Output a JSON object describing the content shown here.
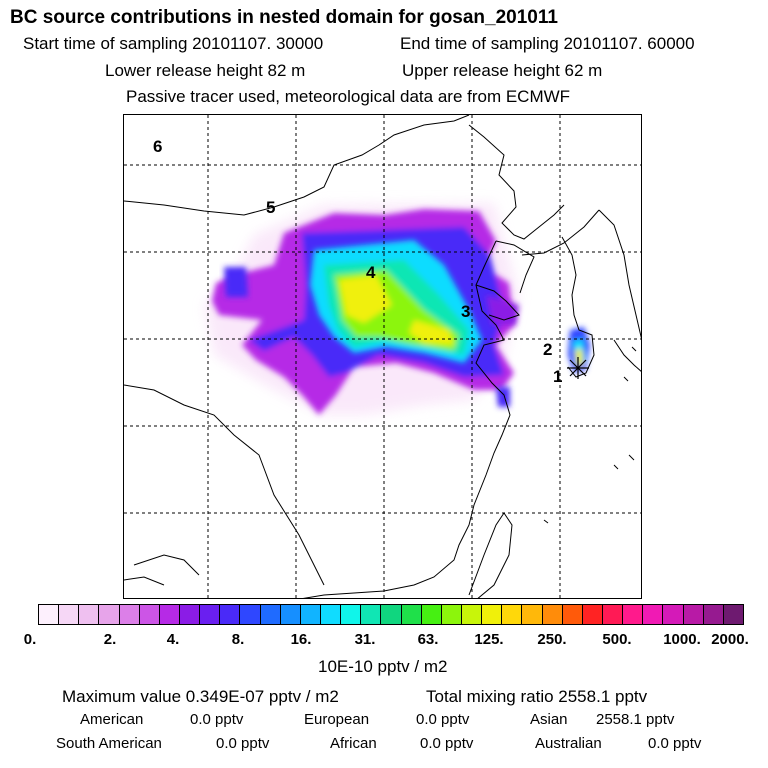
{
  "header": {
    "title": "BC  source contributions in nested domain for gosan_201011",
    "start_time": "Start time of sampling 20101107. 30000",
    "end_time": "End time of sampling 20101107. 60000",
    "lower_release": "Lower release height   82 m",
    "upper_release": "Upper release height   62 m",
    "note": "Passive tracer used, meteorological data are from ECMWF"
  },
  "map": {
    "point_labels": [
      "1",
      "2",
      "3",
      "4",
      "5",
      "6"
    ],
    "receptor_icon": "star-icon"
  },
  "colorbar": {
    "colors": [
      "#fdf0fd",
      "#f6d7f6",
      "#efc0f0",
      "#e7a4ea",
      "#dc7fe8",
      "#cc55e6",
      "#b62ae6",
      "#8b1ce6",
      "#6a1ff0",
      "#4a2af8",
      "#2f47ff",
      "#1f6bff",
      "#168fff",
      "#11b4ff",
      "#10dcff",
      "#10f5ea",
      "#10e6b4",
      "#10d67f",
      "#1fe04a",
      "#46f012",
      "#8cf50c",
      "#c8f50a",
      "#f0f00a",
      "#ffd80a",
      "#ffb80a",
      "#ff8c0a",
      "#ff5a0a",
      "#ff2323",
      "#ff1a55",
      "#ff1a8c",
      "#f01ab4",
      "#d41ab8",
      "#b81aa6",
      "#961a90",
      "#6e1a70"
    ],
    "ticks": [
      "0.",
      "2.",
      "4.",
      "8.",
      "16.",
      "31.",
      "63.",
      "125.",
      "250.",
      "500.",
      "1000.",
      "2000."
    ],
    "unit": "10E-10 pptv / m2"
  },
  "footer": {
    "max_value": "Maximum value  0.349E-07 pptv / m2",
    "total_mixing": "Total mixing ratio     2558.1 pptv",
    "american_label": "American",
    "american_value": "0.0 pptv",
    "european_label": "European",
    "european_value": "0.0 pptv",
    "asian_label": "Asian",
    "asian_value": "2558.1 pptv",
    "south_american_label": "South American",
    "south_american_value": "0.0 pptv",
    "african_label": "African",
    "african_value": "0.0 pptv",
    "australian_label": "Australian",
    "australian_value": "0.0 pptv"
  }
}
